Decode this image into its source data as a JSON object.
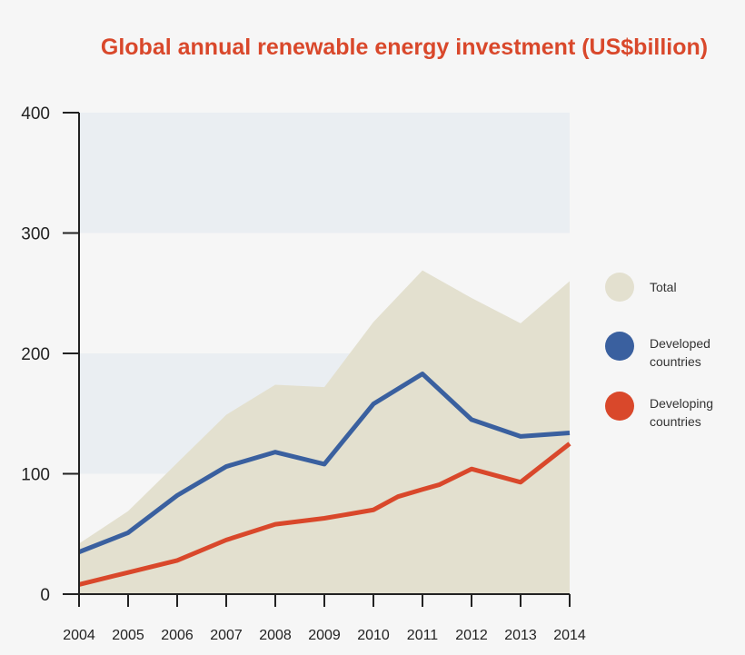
{
  "chart_data": {
    "type": "area",
    "title": "Global annual renewable energy investment (US$billion)",
    "xlabel": "",
    "ylabel": "",
    "ylim": [
      0,
      400
    ],
    "xlim": [
      2004,
      2014
    ],
    "yticks": [
      "0",
      "100",
      "200",
      "300",
      "400"
    ],
    "xticks": [
      "2004",
      "2005",
      "2006",
      "2007",
      "2008",
      "2009",
      "2010",
      "2011",
      "2012",
      "2013",
      "2014"
    ],
    "grid": "alternating horizontal bands",
    "legend_position": "right",
    "series": [
      {
        "name": "Total",
        "type": "area",
        "color": "#e3e0cf",
        "x": [
          2004,
          2005,
          2006,
          2007,
          2008,
          2009,
          2010,
          2011,
          2012,
          2013,
          2014
        ],
        "values": [
          42,
          69,
          109,
          149,
          174,
          172,
          226,
          269,
          246,
          225,
          260
        ]
      },
      {
        "name": "Developed countries",
        "type": "line",
        "color": "#3a609f",
        "x": [
          2004,
          2005,
          2006,
          2007,
          2008,
          2009,
          2010,
          2011,
          2012,
          2013,
          2014
        ],
        "values": [
          35,
          51,
          82,
          106,
          118,
          108,
          158,
          183,
          145,
          131,
          134
        ]
      },
      {
        "name": "Developing countries",
        "type": "line",
        "color": "#d9482b",
        "x": [
          2004,
          2005,
          2006,
          2007,
          2008,
          2009,
          2010,
          2010.5,
          2011,
          2011.35,
          2012,
          2013,
          2014
        ],
        "values": [
          8,
          18,
          28,
          45,
          58,
          63,
          70,
          81,
          87,
          91,
          104,
          93,
          125
        ]
      }
    ],
    "legend": [
      {
        "line1": "Total",
        "line2": ""
      },
      {
        "line1": "Developed",
        "line2": "countries"
      },
      {
        "line1": "Developing",
        "line2": "countries"
      }
    ]
  }
}
